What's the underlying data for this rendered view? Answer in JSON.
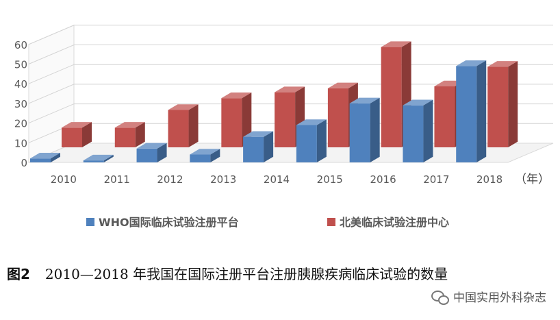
{
  "chart_data": {
    "type": "bar",
    "categories": [
      "2010",
      "2011",
      "2012",
      "2013",
      "2014",
      "2015",
      "2016",
      "2017",
      "2018"
    ],
    "series": [
      {
        "name": "WHO国际临床试验注册平台",
        "color": "#4f81bd",
        "values": [
          2,
          1,
          7,
          4,
          13,
          19,
          30,
          29,
          49
        ]
      },
      {
        "name": "北美临床试验注册中心",
        "color": "#c0504d",
        "values": [
          10,
          10,
          19,
          25,
          28,
          30,
          51,
          31,
          41
        ]
      }
    ],
    "y_ticks": [
      "0",
      "10",
      "20",
      "30",
      "40",
      "50",
      "60"
    ],
    "ylim": [
      0,
      60
    ],
    "x_unit": "（年）",
    "legend_position": "bottom",
    "grid": true
  },
  "caption": {
    "figure_no": "图2",
    "text": "2010—2018 年我国在国际注册平台注册胰腺疾病临床试验的数量"
  },
  "watermark": {
    "text": "中国实用外科杂志"
  }
}
